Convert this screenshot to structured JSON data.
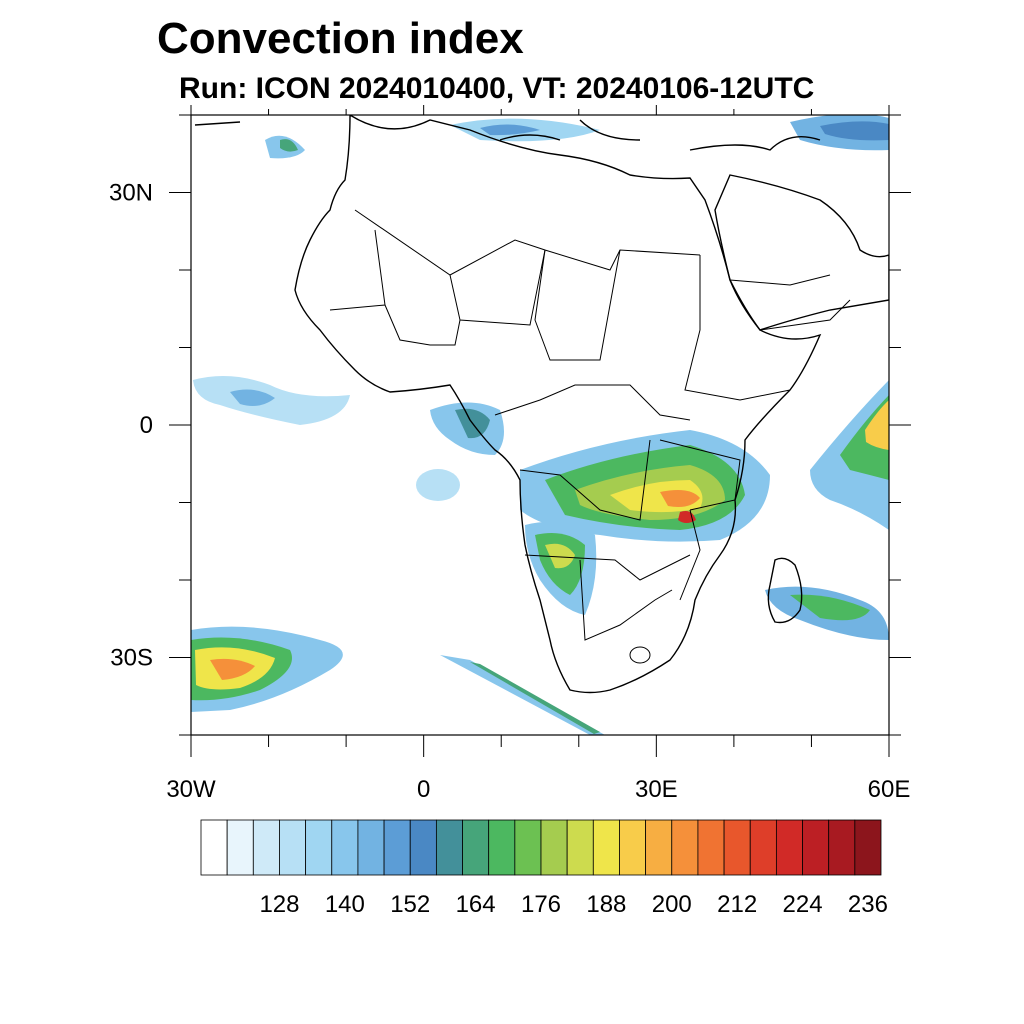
{
  "title": "Convection index",
  "subtitle": "Run: ICON 2024010400,  VT: 20240106-12UTC",
  "map": {
    "lon_range": [
      -30,
      60
    ],
    "lat_range": [
      -40,
      40
    ],
    "lat_labels": [
      {
        "lat": 30,
        "text": "30N"
      },
      {
        "lat": 0,
        "text": "0"
      },
      {
        "lat": -30,
        "text": "30S"
      }
    ],
    "lon_labels": [
      {
        "lon": -30,
        "text": "30W"
      },
      {
        "lon": 0,
        "text": "0"
      },
      {
        "lon": 30,
        "text": "30E"
      },
      {
        "lon": 60,
        "text": "60E"
      }
    ]
  },
  "colorbar": {
    "labels": [
      "128",
      "140",
      "152",
      "164",
      "176",
      "188",
      "200",
      "212",
      "224",
      "236"
    ],
    "colors": [
      "#ffffff",
      "#e8f5fc",
      "#cfeaf8",
      "#b7e0f5",
      "#a0d6f2",
      "#88c6ec",
      "#72b3e2",
      "#5c9dd6",
      "#4a88c4",
      "#43909a",
      "#46a57a",
      "#4cb860",
      "#6cc152",
      "#a5cc4f",
      "#cddb4e",
      "#efe54a",
      "#f8cc4a",
      "#f7ae42",
      "#f5903a",
      "#f07332",
      "#e8572c",
      "#de3e29",
      "#d12a27",
      "#bc1f24",
      "#a81a21",
      "#8c151c"
    ]
  }
}
